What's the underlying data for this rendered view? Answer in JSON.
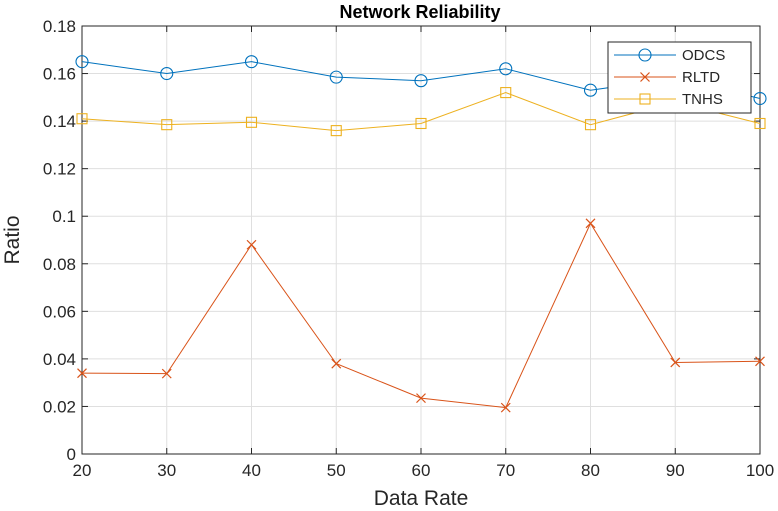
{
  "chart_data": {
    "type": "line",
    "title": "Network Reliability",
    "xlabel": "Data Rate",
    "ylabel": "Ratio",
    "x": [
      20,
      30,
      40,
      50,
      60,
      70,
      80,
      90,
      100
    ],
    "xlim": [
      20,
      100
    ],
    "ylim": [
      0,
      0.18
    ],
    "xticks": [
      "20",
      "30",
      "40",
      "50",
      "60",
      "70",
      "80",
      "90",
      "100"
    ],
    "yticks": [
      "0",
      "0.02",
      "0.04",
      "0.06",
      "0.08",
      "0.1",
      "0.12",
      "0.14",
      "0.16",
      "0.18"
    ],
    "grid": true,
    "legend_position": "top-right",
    "series": [
      {
        "name": "ODCS",
        "marker": "circle",
        "color": "#0072BD",
        "values": [
          0.165,
          0.16,
          0.165,
          0.1585,
          0.157,
          0.162,
          0.153,
          0.158,
          0.1495
        ]
      },
      {
        "name": "RLTD",
        "marker": "x",
        "color": "#D95319",
        "values": [
          0.034,
          0.0338,
          0.088,
          0.038,
          0.0235,
          0.0195,
          0.097,
          0.0385,
          0.039
        ]
      },
      {
        "name": "TNHS",
        "marker": "square",
        "color": "#EDB120",
        "values": [
          0.141,
          0.1385,
          0.1395,
          0.136,
          0.139,
          0.152,
          0.1385,
          0.148,
          0.139
        ]
      }
    ]
  }
}
